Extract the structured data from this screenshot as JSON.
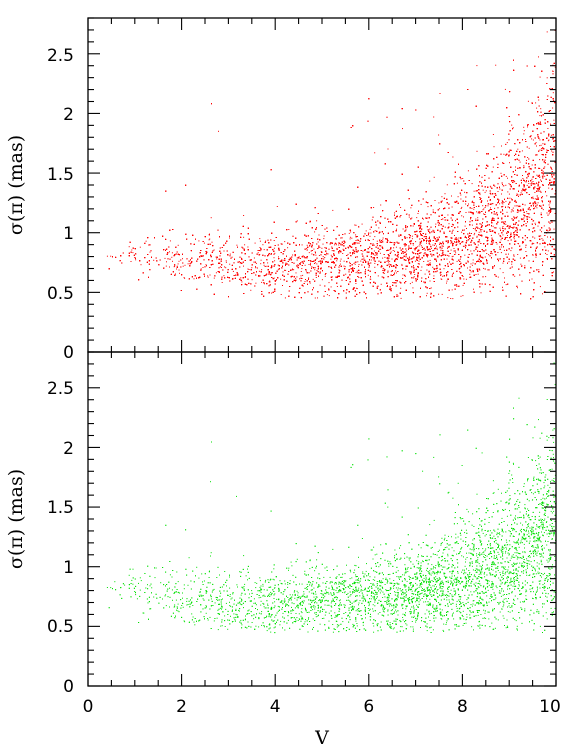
{
  "chart_data": [
    {
      "type": "scatter",
      "panel": "top",
      "xlabel": "",
      "ylabel": "σ(π) (mas)",
      "xlim": [
        0,
        10
      ],
      "ylim": [
        0,
        2.8
      ],
      "yticks": [
        "0",
        "0.5",
        "1",
        "1.5",
        "2",
        "2.5"
      ],
      "color": "#ff0000",
      "point_density": "very dense",
      "trend": {
        "x": [
          0.5,
          2,
          3,
          4,
          5,
          6,
          7,
          8,
          9,
          10
        ],
        "y_median": [
          0.82,
          0.77,
          0.76,
          0.76,
          0.76,
          0.78,
          0.84,
          0.95,
          1.15,
          1.5
        ],
        "y_spread": [
          0.05,
          0.1,
          0.11,
          0.12,
          0.14,
          0.15,
          0.17,
          0.2,
          0.27,
          0.4
        ]
      }
    },
    {
      "type": "scatter",
      "panel": "bottom",
      "xlabel": "V",
      "ylabel": "σ(π) (mas)",
      "xlim": [
        0,
        10
      ],
      "ylim": [
        0,
        2.8
      ],
      "xticks": [
        "0",
        "2",
        "4",
        "6",
        "8",
        "10"
      ],
      "yticks": [
        "0",
        "0.5",
        "1",
        "1.5",
        "2",
        "2.5"
      ],
      "color": "#00e000",
      "point_density": "moderate",
      "trend": {
        "x": [
          0.5,
          2,
          3,
          4,
          5,
          6,
          7,
          8,
          9,
          10
        ],
        "y_median": [
          0.85,
          0.72,
          0.7,
          0.7,
          0.72,
          0.74,
          0.78,
          0.9,
          1.05,
          1.35
        ],
        "y_spread": [
          0.08,
          0.12,
          0.12,
          0.13,
          0.14,
          0.14,
          0.16,
          0.2,
          0.26,
          0.35
        ]
      }
    }
  ]
}
